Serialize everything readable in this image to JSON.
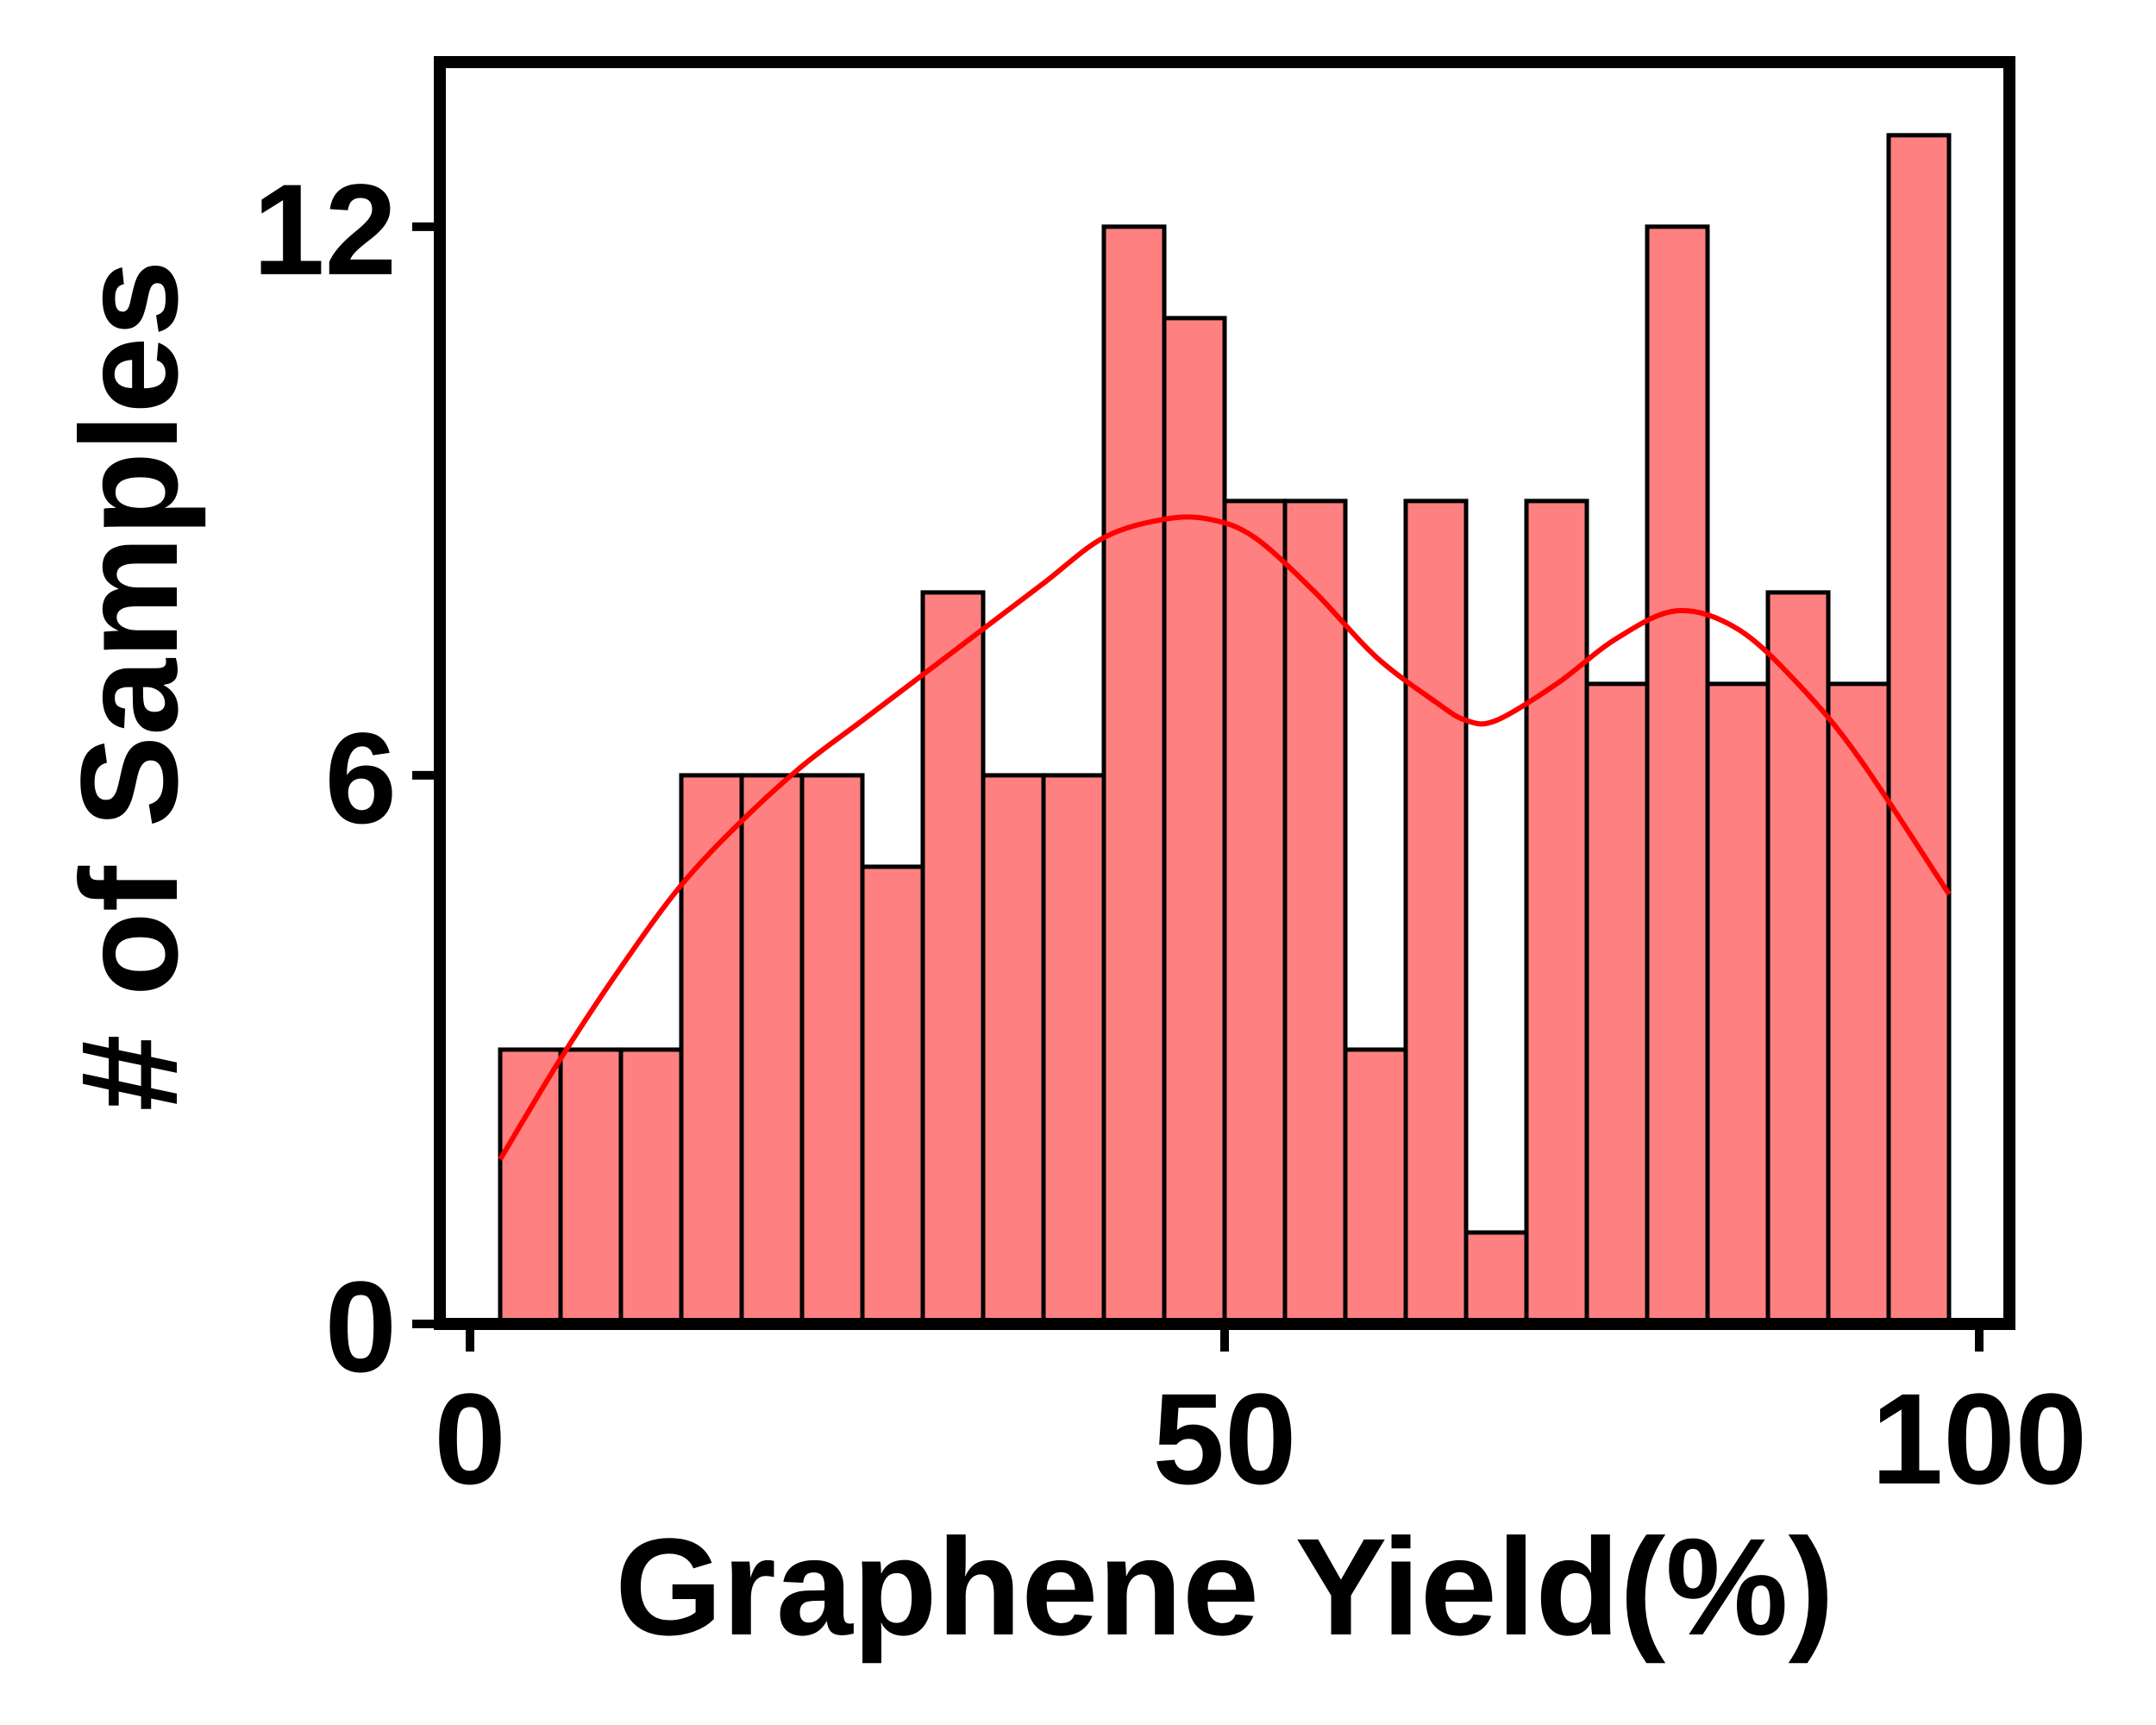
{
  "chart_data": {
    "type": "bar",
    "subtype": "histogram-with-kde",
    "xlabel": "Graphene Yield(%)",
    "ylabel": "# of Samples",
    "xlim": [
      -2,
      102
    ],
    "ylim": [
      0,
      13.8
    ],
    "xticks": [
      0,
      50,
      100
    ],
    "yticks": [
      0,
      6,
      12
    ],
    "grid": false,
    "legend": "none",
    "bin_edges": [
      2,
      6,
      10,
      14,
      18,
      22,
      26,
      30,
      34,
      38,
      42,
      46,
      50,
      54,
      58,
      62,
      66,
      70,
      74,
      78,
      82,
      86,
      90,
      94,
      98
    ],
    "values": [
      3,
      3,
      3,
      6,
      6,
      6,
      5,
      8,
      6,
      6,
      12,
      11,
      9,
      9,
      3,
      9,
      1,
      9,
      7,
      12,
      7,
      8,
      7,
      13
    ],
    "kde": {
      "x": [
        2,
        6,
        10,
        14,
        18,
        22,
        26,
        30,
        34,
        38,
        42,
        46,
        49,
        52,
        56,
        60,
        64,
        66,
        68,
        72,
        76,
        80,
        84,
        88,
        92,
        98
      ],
      "y": [
        1.8,
        2.9,
        3.9,
        4.8,
        5.5,
        6.1,
        6.6,
        7.1,
        7.6,
        8.1,
        8.6,
        8.8,
        8.8,
        8.6,
        8.0,
        7.3,
        6.8,
        6.6,
        6.6,
        7.0,
        7.5,
        7.8,
        7.6,
        7.0,
        6.2,
        4.7
      ]
    },
    "colors": {
      "bar_fill": "#ff8080",
      "bar_edge": "#000000",
      "kde_line": "#ff0000",
      "frame": "#000000"
    }
  }
}
